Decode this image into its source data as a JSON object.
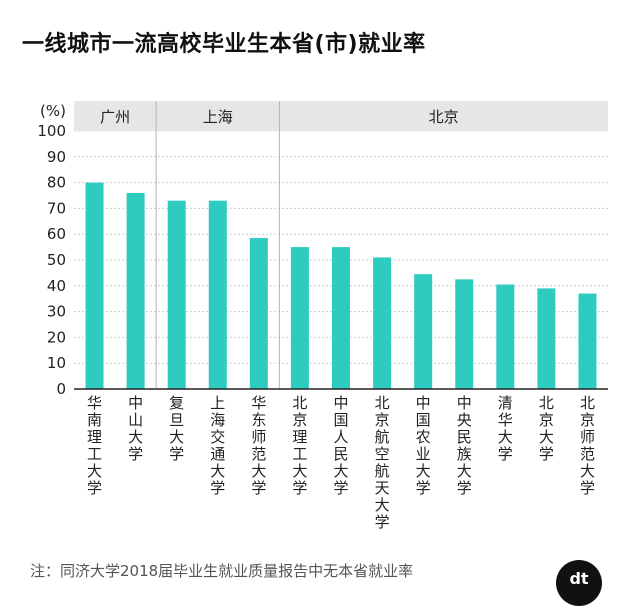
{
  "chart_data": {
    "type": "bar",
    "title": "一线城市一流高校毕业生本省(市)就业率",
    "unit_label": "(%)",
    "ylim": [
      0,
      100
    ],
    "yticks": [
      0,
      10,
      20,
      30,
      40,
      50,
      60,
      70,
      80,
      90,
      100
    ],
    "grid": true,
    "bar_color": "#2ECCC0",
    "groups": [
      {
        "name": "广州",
        "start": 0,
        "end": 1
      },
      {
        "name": "上海",
        "start": 2,
        "end": 4
      },
      {
        "name": "北京",
        "start": 5,
        "end": 12
      }
    ],
    "categories": [
      "华南理工大学",
      "中山大学",
      "复旦大学",
      "上海交通大学",
      "华东师范大学",
      "北京理工大学",
      "中国人民大学",
      "北京航空航天大学",
      "中国农业大学",
      "中央民族大学",
      "清华大学",
      "北京大学",
      "北京师范大学"
    ],
    "values": [
      80,
      76,
      73,
      73,
      58.5,
      55,
      55,
      51,
      44.5,
      42.5,
      40.5,
      39,
      37
    ]
  },
  "footnote": "注：同济大学2018届毕业生就业质量报告中无本省就业率",
  "logo_text": "dt"
}
